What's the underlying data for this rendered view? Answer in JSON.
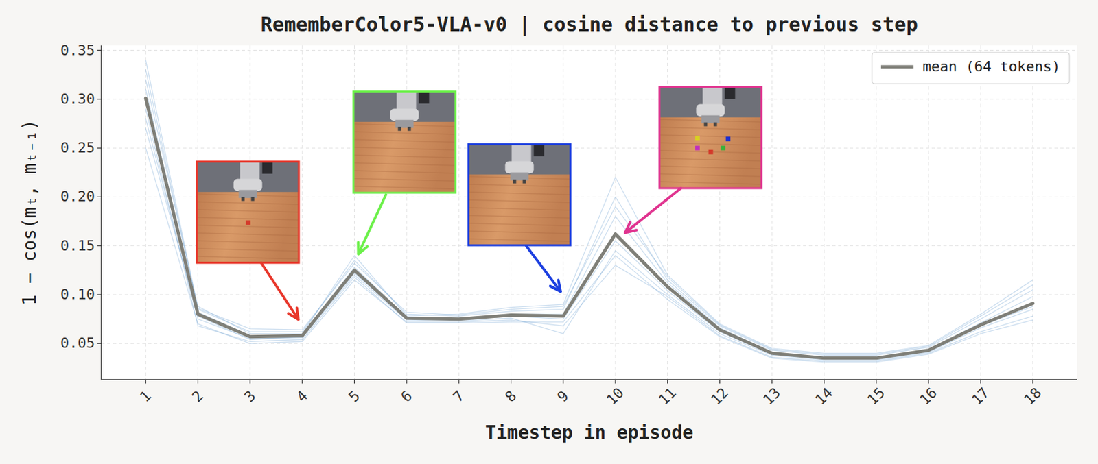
{
  "chart_data": {
    "type": "line",
    "title": "RememberColor5-VLA-v0 | cosine distance to previous step",
    "x_label": "Timestep in episode",
    "y_label": "1 − cos(mₜ, mₜ₋₁)",
    "x": [
      1,
      2,
      3,
      4,
      5,
      6,
      7,
      8,
      9,
      10,
      11,
      12,
      13,
      14,
      15,
      16,
      17,
      18
    ],
    "xlim": [
      0.15,
      18.85
    ],
    "xticks": [
      1,
      2,
      3,
      4,
      5,
      6,
      7,
      8,
      9,
      10,
      11,
      12,
      13,
      14,
      15,
      16,
      17,
      18
    ],
    "ylim": [
      0.013,
      0.355
    ],
    "yticks": [
      0.05,
      {
        "value": 0.1,
        "label": "0.10"
      },
      0.15,
      {
        "value": 0.2,
        "label": "0.20"
      },
      0.25,
      {
        "value": 0.3,
        "label": "0.30"
      },
      0.35
    ],
    "grid": true,
    "legend": "upper right",
    "series": [
      {
        "color": "#8fb5dc",
        "values": [
          0.33,
          0.085,
          0.062,
          0.062,
          0.135,
          0.08,
          0.078,
          0.083,
          0.085,
          0.2,
          0.115,
          0.068,
          0.043,
          0.038,
          0.038,
          0.046,
          0.075,
          0.105
        ]
      },
      {
        "color": "#8fb5dc",
        "values": [
          0.25,
          0.07,
          0.05,
          0.052,
          0.115,
          0.072,
          0.072,
          0.074,
          0.068,
          0.13,
          0.098,
          0.058,
          0.036,
          0.032,
          0.032,
          0.04,
          0.062,
          0.078
        ]
      },
      {
        "color": "#8fb5dc",
        "values": [
          0.32,
          0.088,
          0.06,
          0.06,
          0.14,
          0.078,
          0.08,
          0.087,
          0.09,
          0.22,
          0.12,
          0.07,
          0.045,
          0.04,
          0.04,
          0.048,
          0.08,
          0.115
        ]
      },
      {
        "color": "#8fb5dc",
        "values": [
          0.28,
          0.075,
          0.055,
          0.056,
          0.12,
          0.074,
          0.073,
          0.076,
          0.06,
          0.145,
          0.1,
          0.06,
          0.038,
          0.033,
          0.033,
          0.041,
          0.066,
          0.085
        ]
      },
      {
        "color": "#8fb5dc",
        "values": [
          0.31,
          0.082,
          0.058,
          0.059,
          0.128,
          0.077,
          0.076,
          0.08,
          0.08,
          0.18,
          0.112,
          0.066,
          0.041,
          0.036,
          0.036,
          0.044,
          0.071,
          0.098
        ]
      },
      {
        "color": "#8fb5dc",
        "values": [
          0.27,
          0.078,
          0.054,
          0.057,
          0.122,
          0.075,
          0.074,
          0.078,
          0.075,
          0.155,
          0.104,
          0.062,
          0.039,
          0.034,
          0.034,
          0.042,
          0.068,
          0.088
        ]
      },
      {
        "color": "#8fb5dc",
        "values": [
          0.34,
          0.086,
          0.065,
          0.064,
          0.132,
          0.082,
          0.079,
          0.085,
          0.088,
          0.19,
          0.118,
          0.069,
          0.044,
          0.039,
          0.039,
          0.047,
          0.078,
          0.11
        ]
      },
      {
        "color": "#8fb5dc",
        "values": [
          0.29,
          0.068,
          0.052,
          0.054,
          0.118,
          0.071,
          0.071,
          0.072,
          0.072,
          0.14,
          0.095,
          0.057,
          0.035,
          0.031,
          0.031,
          0.039,
          0.06,
          0.074
        ]
      },
      {
        "name": "mean (64 tokens)",
        "color": "#7f7f78",
        "values": [
          0.301,
          0.08,
          0.057,
          0.058,
          0.125,
          0.076,
          0.075,
          0.079,
          0.078,
          0.162,
          0.108,
          0.064,
          0.04,
          0.035,
          0.035,
          0.043,
          0.069,
          0.091
        ]
      }
    ]
  }
}
